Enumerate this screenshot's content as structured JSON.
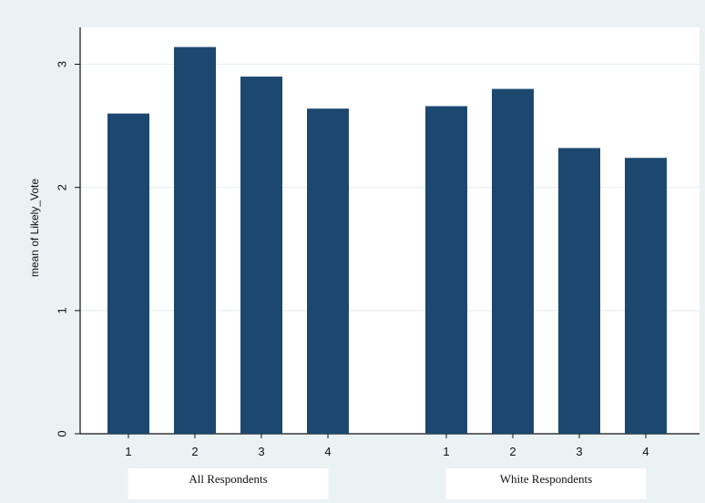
{
  "chart_data": {
    "type": "bar",
    "ylabel": "mean of Likely_Vote",
    "ylim": [
      0,
      3.3
    ],
    "yticks": [
      0,
      1,
      2,
      3
    ],
    "grid": true,
    "groups": [
      {
        "label": "All Respondents",
        "categories": [
          "1",
          "2",
          "3",
          "4"
        ],
        "values": [
          2.6,
          3.14,
          2.9,
          2.64
        ]
      },
      {
        "label": "White Respondents",
        "categories": [
          "1",
          "2",
          "3",
          "4"
        ],
        "values": [
          2.66,
          2.8,
          2.32,
          2.24
        ]
      }
    ],
    "bar_color": "#1c4870",
    "grid_color": "#e6eeef",
    "plot_background": "#ffffff",
    "outer_background": "#eaf2f3"
  }
}
